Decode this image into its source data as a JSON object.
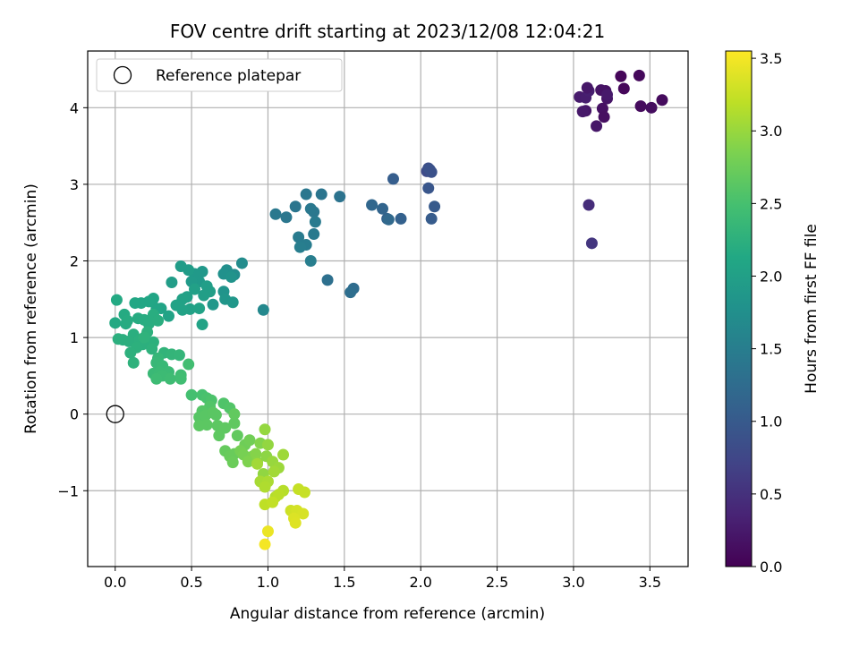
{
  "chart_data": {
    "type": "scatter",
    "title": "FOV centre drift starting at 2023/12/08 12:04:21",
    "xlabel": "Angular distance from reference (arcmin)",
    "ylabel": "Rotation from reference (arcmin)",
    "xlim": [
      -0.18,
      3.75
    ],
    "ylim": [
      -1.99,
      4.74
    ],
    "xticks": [
      "0.0",
      "0.5",
      "1.0",
      "1.5",
      "2.0",
      "2.5",
      "3.0",
      "3.5"
    ],
    "yticks": [
      "−1",
      "0",
      "1",
      "2",
      "3",
      "4"
    ],
    "grid": true,
    "legend": {
      "position": "top-left",
      "entries": [
        "Reference platepar"
      ]
    },
    "reference_point": {
      "x": 0.0,
      "y": 0.0
    },
    "colorbar": {
      "label": "Hours from first FF file",
      "range": [
        0.0,
        3.55
      ],
      "ticks": [
        "0.0",
        "0.5",
        "1.0",
        "1.5",
        "2.0",
        "2.5",
        "3.0",
        "3.5"
      ],
      "colormap": "viridis"
    },
    "points": [
      [
        3.31,
        4.41,
        0.05
      ],
      [
        3.43,
        4.42,
        0.08
      ],
      [
        3.58,
        4.1,
        0.1
      ],
      [
        3.51,
        4.0,
        0.12
      ],
      [
        3.44,
        4.02,
        0.1
      ],
      [
        3.33,
        4.25,
        0.06
      ],
      [
        3.21,
        4.22,
        0.15
      ],
      [
        3.18,
        4.23,
        0.18
      ],
      [
        3.22,
        4.12,
        0.2
      ],
      [
        3.19,
        3.99,
        0.16
      ],
      [
        3.2,
        3.88,
        0.14
      ],
      [
        3.15,
        3.76,
        0.22
      ],
      [
        3.08,
        3.96,
        0.2
      ],
      [
        3.06,
        3.95,
        0.24
      ],
      [
        3.04,
        4.14,
        0.26
      ],
      [
        3.08,
        4.13,
        0.28
      ],
      [
        3.1,
        4.22,
        0.3
      ],
      [
        3.09,
        4.26,
        0.22
      ],
      [
        3.22,
        4.17,
        0.25
      ],
      [
        3.1,
        2.73,
        0.45
      ],
      [
        3.12,
        2.23,
        0.55
      ],
      [
        2.04,
        3.17,
        0.8
      ],
      [
        2.05,
        3.21,
        0.85
      ],
      [
        2.06,
        3.19,
        0.9
      ],
      [
        2.07,
        3.16,
        0.88
      ],
      [
        2.05,
        2.95,
        0.95
      ],
      [
        2.09,
        2.71,
        1.0
      ],
      [
        2.07,
        2.55,
        1.02
      ],
      [
        1.82,
        3.07,
        1.05
      ],
      [
        1.87,
        2.55,
        1.1
      ],
      [
        1.78,
        2.55,
        1.12
      ],
      [
        1.75,
        2.68,
        1.15
      ],
      [
        1.68,
        2.73,
        1.18
      ],
      [
        1.79,
        2.54,
        1.2
      ],
      [
        1.56,
        1.64,
        1.25
      ],
      [
        1.54,
        1.59,
        1.28
      ],
      [
        1.39,
        1.75,
        1.3
      ],
      [
        1.47,
        2.84,
        1.35
      ],
      [
        1.35,
        2.87,
        1.38
      ],
      [
        1.3,
        2.64,
        1.4
      ],
      [
        1.28,
        2.68,
        1.42
      ],
      [
        1.25,
        2.87,
        1.4
      ],
      [
        1.31,
        2.51,
        1.45
      ],
      [
        1.3,
        2.35,
        1.44
      ],
      [
        1.2,
        2.31,
        1.46
      ],
      [
        1.25,
        2.21,
        1.48
      ],
      [
        1.21,
        2.18,
        1.5
      ],
      [
        1.28,
        2.0,
        1.5
      ],
      [
        1.18,
        2.71,
        1.38
      ],
      [
        1.12,
        2.57,
        1.4
      ],
      [
        1.05,
        2.61,
        1.42
      ],
      [
        0.97,
        1.36,
        1.65
      ],
      [
        0.83,
        1.97,
        1.7
      ],
      [
        0.78,
        1.82,
        1.72
      ],
      [
        0.73,
        1.88,
        1.75
      ],
      [
        0.71,
        1.83,
        1.78
      ],
      [
        0.76,
        1.79,
        1.8
      ],
      [
        0.71,
        1.6,
        1.82
      ],
      [
        0.72,
        1.5,
        1.85
      ],
      [
        0.77,
        1.46,
        1.86
      ],
      [
        0.64,
        1.43,
        1.88
      ],
      [
        0.57,
        1.86,
        1.88
      ],
      [
        0.52,
        1.83,
        1.9
      ],
      [
        0.55,
        1.73,
        1.9
      ],
      [
        0.5,
        1.73,
        1.92
      ],
      [
        0.48,
        1.88,
        1.95
      ],
      [
        0.43,
        1.93,
        1.95
      ],
      [
        0.37,
        1.72,
        1.96
      ],
      [
        0.6,
        1.67,
        1.97
      ],
      [
        0.62,
        1.6,
        1.98
      ],
      [
        0.58,
        1.55,
        1.98
      ],
      [
        0.52,
        1.63,
        2.0
      ],
      [
        0.47,
        1.53,
        2.0
      ],
      [
        0.44,
        1.5,
        2.02
      ],
      [
        0.49,
        1.37,
        2.02
      ],
      [
        0.4,
        1.42,
        2.03
      ],
      [
        0.44,
        1.36,
        2.04
      ],
      [
        0.55,
        1.38,
        2.04
      ],
      [
        0.57,
        1.17,
        2.05
      ],
      [
        0.35,
        1.28,
        2.06
      ],
      [
        0.3,
        1.38,
        2.06
      ],
      [
        0.27,
        1.38,
        2.08
      ],
      [
        0.25,
        1.51,
        2.08
      ],
      [
        0.22,
        1.47,
        2.1
      ],
      [
        0.17,
        1.45,
        2.1
      ],
      [
        0.13,
        1.45,
        2.12
      ],
      [
        0.01,
        1.49,
        2.15
      ],
      [
        0.0,
        1.19,
        2.15
      ],
      [
        0.06,
        1.3,
        2.16
      ],
      [
        0.07,
        1.18,
        2.17
      ],
      [
        0.08,
        1.22,
        2.18
      ],
      [
        0.15,
        1.25,
        2.18
      ],
      [
        0.19,
        1.23,
        2.19
      ],
      [
        0.22,
        1.18,
        2.2
      ],
      [
        0.25,
        1.3,
        2.2
      ],
      [
        0.28,
        1.22,
        2.21
      ],
      [
        0.12,
        1.04,
        2.22
      ],
      [
        0.05,
        0.97,
        2.22
      ],
      [
        0.02,
        0.98,
        2.23
      ],
      [
        0.09,
        0.95,
        2.23
      ],
      [
        0.16,
        0.97,
        2.24
      ],
      [
        0.18,
        0.91,
        2.24
      ],
      [
        0.14,
        0.87,
        2.25
      ],
      [
        0.25,
        0.94,
        2.25
      ],
      [
        0.21,
        1.07,
        2.26
      ],
      [
        0.1,
        0.8,
        2.26
      ],
      [
        0.12,
        0.67,
        2.27
      ],
      [
        0.24,
        0.85,
        2.27
      ],
      [
        0.19,
        1.0,
        2.28
      ],
      [
        0.32,
        0.8,
        2.3
      ],
      [
        0.37,
        0.78,
        2.32
      ],
      [
        0.42,
        0.77,
        2.33
      ],
      [
        0.28,
        0.73,
        2.34
      ],
      [
        0.27,
        0.67,
        2.36
      ],
      [
        0.31,
        0.63,
        2.37
      ],
      [
        0.25,
        0.53,
        2.38
      ],
      [
        0.29,
        0.55,
        2.39
      ],
      [
        0.35,
        0.55,
        2.4
      ],
      [
        0.31,
        0.5,
        2.41
      ],
      [
        0.27,
        0.46,
        2.42
      ],
      [
        0.36,
        0.46,
        2.43
      ],
      [
        0.43,
        0.51,
        2.44
      ],
      [
        0.43,
        0.46,
        2.45
      ],
      [
        0.48,
        0.65,
        2.46
      ],
      [
        0.5,
        0.25,
        2.48
      ],
      [
        0.57,
        0.25,
        2.5
      ],
      [
        0.6,
        0.21,
        2.52
      ],
      [
        0.63,
        0.18,
        2.54
      ],
      [
        0.71,
        0.14,
        2.56
      ],
      [
        0.75,
        0.08,
        2.58
      ],
      [
        0.62,
        0.1,
        2.58
      ],
      [
        0.57,
        0.04,
        2.6
      ],
      [
        0.55,
        -0.04,
        2.61
      ],
      [
        0.59,
        -0.02,
        2.62
      ],
      [
        0.66,
        -0.01,
        2.63
      ],
      [
        0.64,
        0.02,
        2.63
      ],
      [
        0.55,
        -0.15,
        2.64
      ],
      [
        0.6,
        -0.14,
        2.64
      ],
      [
        0.67,
        -0.15,
        2.65
      ],
      [
        0.68,
        -0.28,
        2.66
      ],
      [
        0.72,
        -0.18,
        2.66
      ],
      [
        0.78,
        -0.12,
        2.67
      ],
      [
        0.8,
        -0.28,
        2.68
      ],
      [
        0.78,
        0.0,
        2.68
      ],
      [
        0.72,
        -0.48,
        2.7
      ],
      [
        0.75,
        -0.55,
        2.72
      ],
      [
        0.78,
        -0.52,
        2.73
      ],
      [
        0.77,
        -0.63,
        2.74
      ],
      [
        0.85,
        -0.4,
        2.76
      ],
      [
        0.88,
        -0.34,
        2.78
      ],
      [
        0.82,
        -0.48,
        2.8
      ],
      [
        0.84,
        -0.53,
        2.82
      ],
      [
        0.9,
        -0.55,
        2.84
      ],
      [
        0.87,
        -0.62,
        2.86
      ],
      [
        0.95,
        -0.38,
        2.88
      ],
      [
        0.92,
        -0.52,
        2.9
      ],
      [
        0.93,
        -0.63,
        2.92
      ],
      [
        0.99,
        -0.55,
        2.94
      ],
      [
        0.97,
        -0.78,
        2.96
      ],
      [
        1.0,
        -0.4,
        2.97
      ],
      [
        0.98,
        -0.2,
        2.98
      ],
      [
        1.03,
        -0.62,
        3.0
      ],
      [
        1.07,
        -0.7,
        3.02
      ],
      [
        1.1,
        -0.53,
        3.03
      ],
      [
        1.04,
        -0.75,
        3.05
      ],
      [
        0.95,
        -0.88,
        3.08
      ],
      [
        1.0,
        -0.88,
        3.1
      ],
      [
        0.93,
        -0.65,
        3.05
      ],
      [
        0.98,
        -0.95,
        3.12
      ],
      [
        1.05,
        -1.08,
        3.14
      ],
      [
        1.1,
        -1.0,
        3.16
      ],
      [
        1.07,
        -1.05,
        3.18
      ],
      [
        0.98,
        -1.18,
        3.2
      ],
      [
        1.03,
        -1.15,
        3.22
      ],
      [
        1.2,
        -0.98,
        3.24
      ],
      [
        1.24,
        -1.02,
        3.25
      ],
      [
        1.15,
        -1.26,
        3.28
      ],
      [
        1.17,
        -1.28,
        3.3
      ],
      [
        1.19,
        -1.26,
        3.32
      ],
      [
        1.23,
        -1.3,
        3.34
      ],
      [
        1.17,
        -1.36,
        3.36
      ],
      [
        1.18,
        -1.42,
        3.38
      ],
      [
        1.0,
        -1.53,
        3.45
      ],
      [
        0.98,
        -1.7,
        3.5
      ]
    ]
  }
}
